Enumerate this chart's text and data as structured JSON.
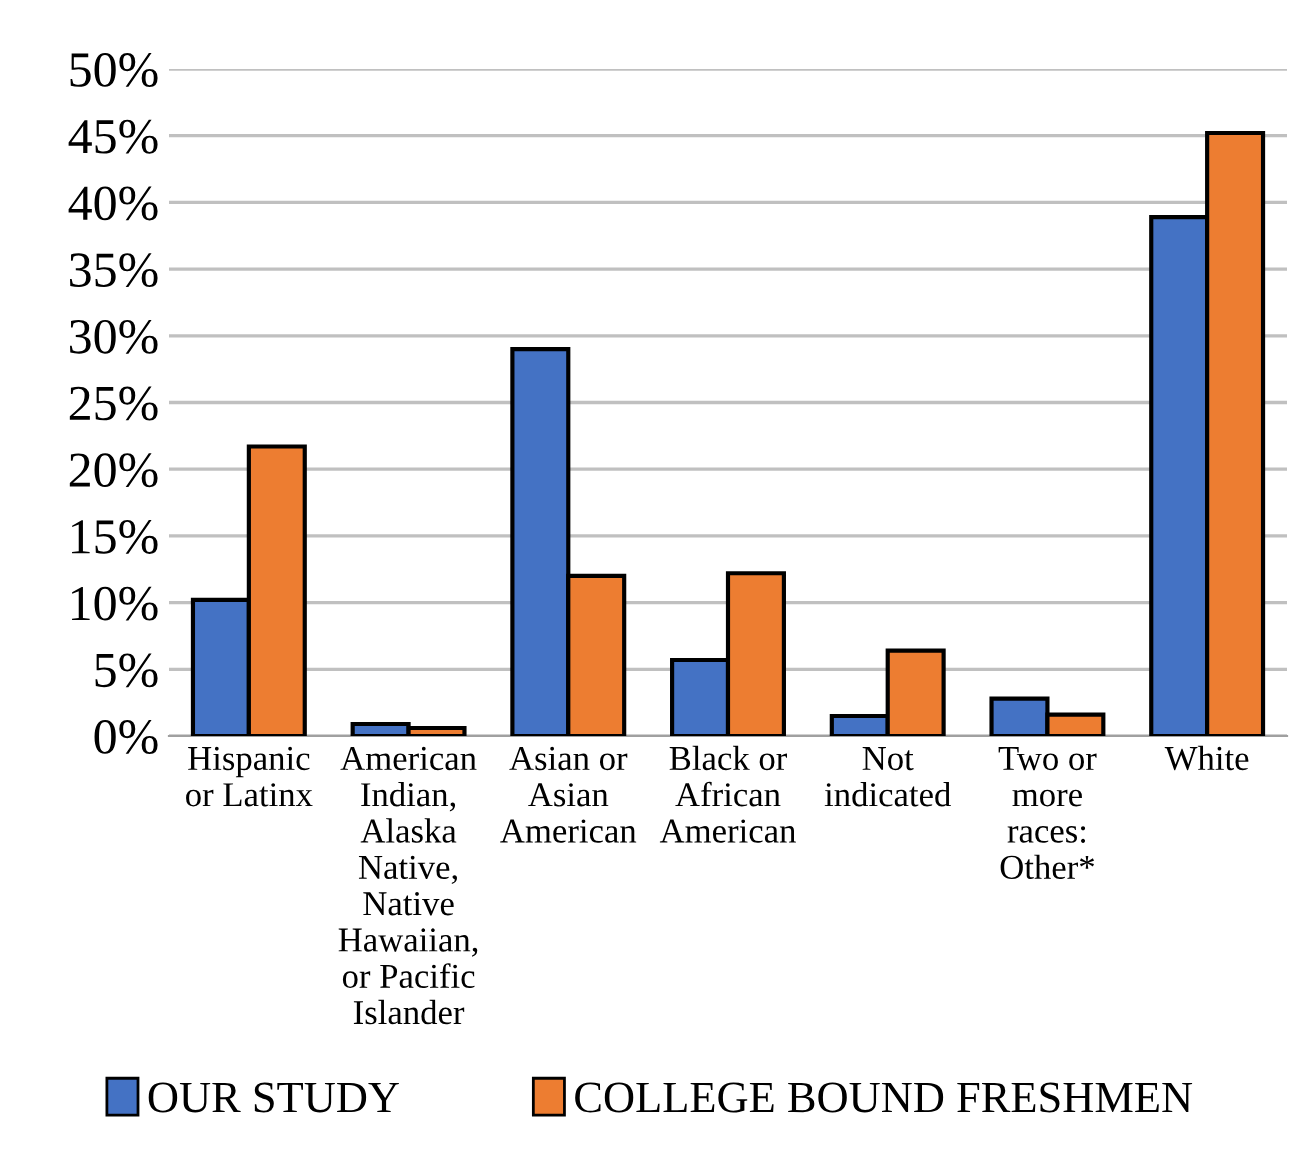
{
  "chart_data": {
    "type": "bar",
    "categories": [
      "Hispanic\nor Latinx",
      "American\nIndian,\nAlaska\nNative,\nNative\nHawaiian,\nor Pacific\nIslander",
      "Asian or\nAsian\nAmerican",
      "Black or\nAfrican\nAmerican",
      "Not\nindicated",
      "Two or\nmore\nraces:\nOther*",
      "White"
    ],
    "series": [
      {
        "name": "OUR STUDY",
        "color": "#4472c4",
        "values": [
          10.2,
          0.9,
          29.0,
          5.7,
          1.5,
          2.8,
          38.9
        ]
      },
      {
        "name": "COLLEGE BOUND FRESHMEN",
        "color": "#ed7d31",
        "values": [
          21.7,
          0.6,
          12.0,
          12.2,
          6.4,
          1.6,
          45.2
        ]
      }
    ],
    "ylim": [
      0,
      50
    ],
    "yticks": [
      {
        "value": 0,
        "label": "0%"
      },
      {
        "value": 5,
        "label": "5%"
      },
      {
        "value": 10,
        "label": "10%"
      },
      {
        "value": 15,
        "label": "15%"
      },
      {
        "value": 20,
        "label": "20%"
      },
      {
        "value": 25,
        "label": "25%"
      },
      {
        "value": 30,
        "label": "30%"
      },
      {
        "value": 35,
        "label": "35%"
      },
      {
        "value": 40,
        "label": "40%"
      },
      {
        "value": 45,
        "label": "45%"
      },
      {
        "value": 50,
        "label": "50%"
      }
    ],
    "grid": "y",
    "legend": "bottom"
  }
}
